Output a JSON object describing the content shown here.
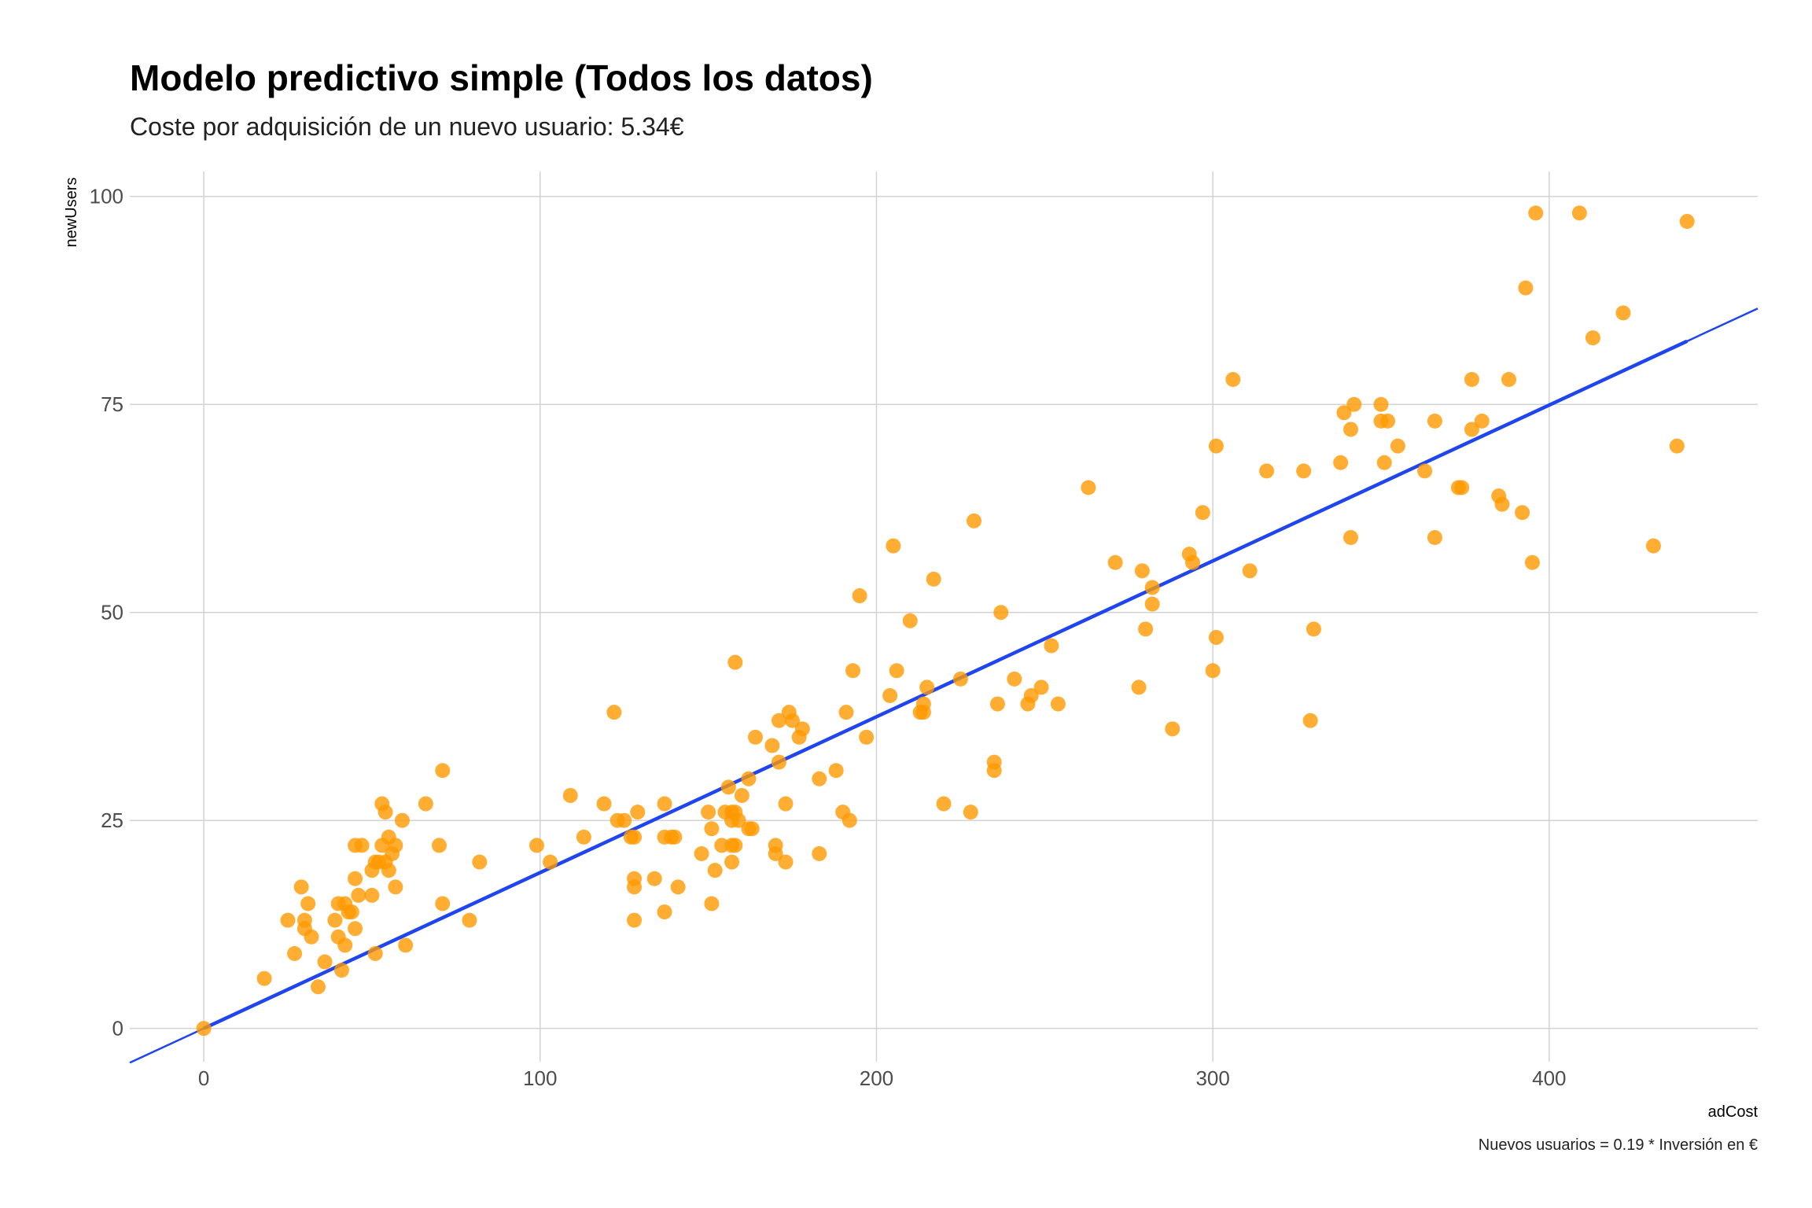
{
  "chart_data": {
    "type": "scatter",
    "title": "Modelo predictivo simple (Todos los datos)",
    "subtitle": "Coste por adquisición de un nuevo usuario: 5.34€",
    "xlabel": "adCost",
    "ylabel": "newUsers",
    "caption": "Nuevos usuarios = 0.19 * Inversión en €",
    "xlim": [
      -22,
      462
    ],
    "ylim": [
      -4,
      103
    ],
    "x_ticks": [
      0,
      100,
      200,
      300,
      400
    ],
    "y_ticks": [
      0,
      25,
      50,
      75,
      100
    ],
    "grid": true,
    "point_color": "#ff9900",
    "line_color": "#1f45f0",
    "regression": {
      "slope": 0.1873,
      "intercept": 0
    },
    "points": [
      [
        0,
        0
      ],
      [
        18,
        6
      ],
      [
        25,
        13
      ],
      [
        27,
        9
      ],
      [
        29,
        17
      ],
      [
        30,
        12
      ],
      [
        30,
        13
      ],
      [
        31,
        15
      ],
      [
        32,
        11
      ],
      [
        34,
        5
      ],
      [
        36,
        8
      ],
      [
        39,
        13
      ],
      [
        40,
        11
      ],
      [
        40,
        15
      ],
      [
        41,
        7
      ],
      [
        42,
        15
      ],
      [
        42,
        10
      ],
      [
        43,
        14
      ],
      [
        44,
        14
      ],
      [
        45,
        18
      ],
      [
        45,
        22
      ],
      [
        45,
        12
      ],
      [
        46,
        16
      ],
      [
        47,
        22
      ],
      [
        50,
        16
      ],
      [
        50,
        19
      ],
      [
        51,
        9
      ],
      [
        51,
        20
      ],
      [
        52,
        20
      ],
      [
        53,
        22
      ],
      [
        53,
        27
      ],
      [
        54,
        26
      ],
      [
        54,
        20
      ],
      [
        55,
        19
      ],
      [
        55,
        23
      ],
      [
        56,
        21
      ],
      [
        57,
        22
      ],
      [
        57,
        17
      ],
      [
        59,
        25
      ],
      [
        60,
        10
      ],
      [
        66,
        27
      ],
      [
        70,
        22
      ],
      [
        71,
        15
      ],
      [
        71,
        31
      ],
      [
        79,
        13
      ],
      [
        82,
        20
      ],
      [
        99,
        22
      ],
      [
        103,
        20
      ],
      [
        109,
        28
      ],
      [
        113,
        23
      ],
      [
        119,
        27
      ],
      [
        122,
        38
      ],
      [
        123,
        25
      ],
      [
        125,
        25
      ],
      [
        127,
        23
      ],
      [
        128,
        23
      ],
      [
        128,
        18
      ],
      [
        128,
        17
      ],
      [
        128,
        13
      ],
      [
        129,
        26
      ],
      [
        134,
        18
      ],
      [
        137,
        14
      ],
      [
        137,
        27
      ],
      [
        137,
        23
      ],
      [
        139,
        23
      ],
      [
        140,
        23
      ],
      [
        141,
        17
      ],
      [
        148,
        21
      ],
      [
        150,
        26
      ],
      [
        151,
        15
      ],
      [
        151,
        24
      ],
      [
        152,
        19
      ],
      [
        154,
        22
      ],
      [
        155,
        26
      ],
      [
        156,
        29
      ],
      [
        157,
        26
      ],
      [
        157,
        20
      ],
      [
        157,
        25
      ],
      [
        157,
        22
      ],
      [
        158,
        22
      ],
      [
        158,
        44
      ],
      [
        158,
        26
      ],
      [
        159,
        25
      ],
      [
        160,
        28
      ],
      [
        162,
        30
      ],
      [
        162,
        24
      ],
      [
        163,
        24
      ],
      [
        164,
        35
      ],
      [
        169,
        34
      ],
      [
        170,
        22
      ],
      [
        170,
        21
      ],
      [
        171,
        32
      ],
      [
        171,
        37
      ],
      [
        173,
        27
      ],
      [
        173,
        20
      ],
      [
        174,
        38
      ],
      [
        175,
        37
      ],
      [
        177,
        35
      ],
      [
        178,
        36
      ],
      [
        183,
        30
      ],
      [
        183,
        21
      ],
      [
        188,
        31
      ],
      [
        190,
        26
      ],
      [
        191,
        38
      ],
      [
        192,
        25
      ],
      [
        193,
        43
      ],
      [
        195,
        52
      ],
      [
        197,
        35
      ],
      [
        204,
        40
      ],
      [
        205,
        58
      ],
      [
        206,
        43
      ],
      [
        210,
        49
      ],
      [
        213,
        38
      ],
      [
        214,
        39
      ],
      [
        214,
        38
      ],
      [
        215,
        41
      ],
      [
        217,
        54
      ],
      [
        220,
        27
      ],
      [
        225,
        42
      ],
      [
        228,
        26
      ],
      [
        229,
        61
      ],
      [
        235,
        32
      ],
      [
        235,
        31
      ],
      [
        236,
        39
      ],
      [
        237,
        50
      ],
      [
        241,
        42
      ],
      [
        245,
        39
      ],
      [
        246,
        40
      ],
      [
        249,
        41
      ],
      [
        252,
        46
      ],
      [
        254,
        39
      ],
      [
        263,
        65
      ],
      [
        271,
        56
      ],
      [
        278,
        41
      ],
      [
        279,
        55
      ],
      [
        280,
        48
      ],
      [
        282,
        51
      ],
      [
        282,
        53
      ],
      [
        288,
        36
      ],
      [
        293,
        57
      ],
      [
        294,
        56
      ],
      [
        297,
        62
      ],
      [
        300,
        43
      ],
      [
        301,
        47
      ],
      [
        301,
        70
      ],
      [
        306,
        78
      ],
      [
        311,
        55
      ],
      [
        316,
        67
      ],
      [
        327,
        67
      ],
      [
        329,
        37
      ],
      [
        330,
        48
      ],
      [
        338,
        68
      ],
      [
        339,
        74
      ],
      [
        341,
        59
      ],
      [
        341,
        72
      ],
      [
        342,
        75
      ],
      [
        350,
        73
      ],
      [
        350,
        75
      ],
      [
        351,
        68
      ],
      [
        352,
        73
      ],
      [
        355,
        70
      ],
      [
        363,
        67
      ],
      [
        366,
        73
      ],
      [
        366,
        59
      ],
      [
        373,
        65
      ],
      [
        374,
        65
      ],
      [
        377,
        78
      ],
      [
        377,
        72
      ],
      [
        380,
        73
      ],
      [
        385,
        64
      ],
      [
        386,
        63
      ],
      [
        388,
        78
      ],
      [
        392,
        62
      ],
      [
        393,
        89
      ],
      [
        395,
        56
      ],
      [
        396,
        98
      ],
      [
        409,
        98
      ],
      [
        413,
        83
      ],
      [
        422,
        86
      ],
      [
        431,
        58
      ],
      [
        438,
        70
      ],
      [
        441,
        97
      ]
    ]
  }
}
